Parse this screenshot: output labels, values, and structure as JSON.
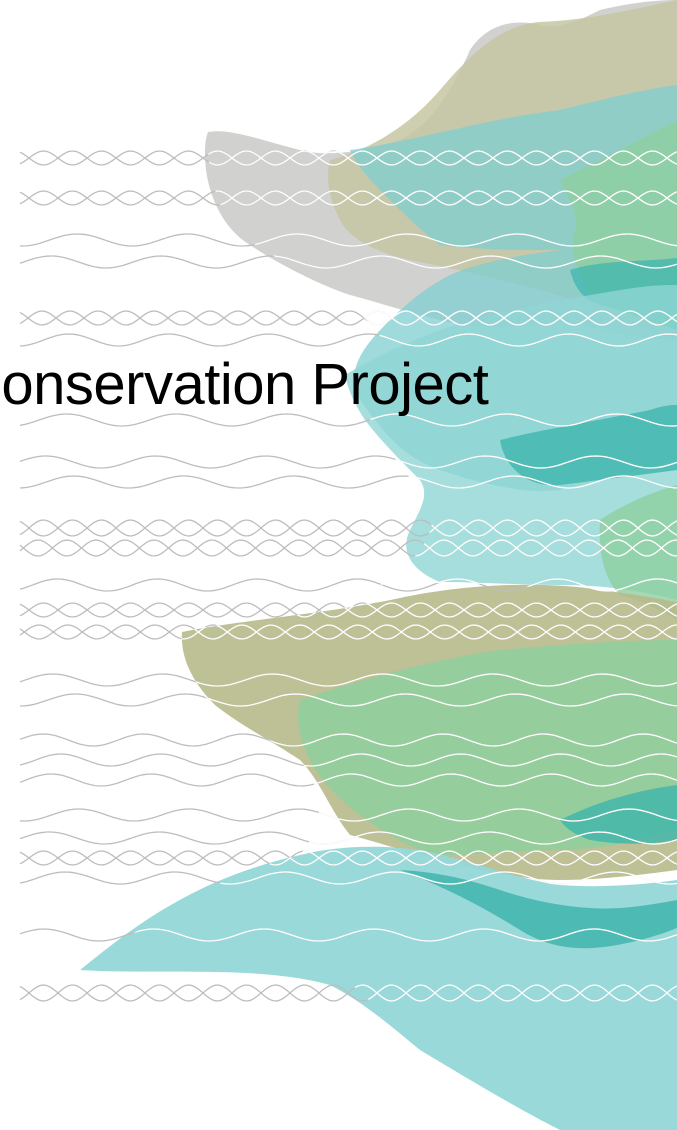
{
  "slide": {
    "title": "Conservation Project"
  },
  "decoration": {
    "wave_stroke_color": "#bdbdbd",
    "wave_stroke_color_on_fill": "#ffffff",
    "palette": {
      "teal": "#7fcfd1",
      "teal_dark": "#3fb5ad",
      "olive": "#b7b98a",
      "green": "#8fcf9f",
      "gray": "#cfcfcc"
    }
  }
}
